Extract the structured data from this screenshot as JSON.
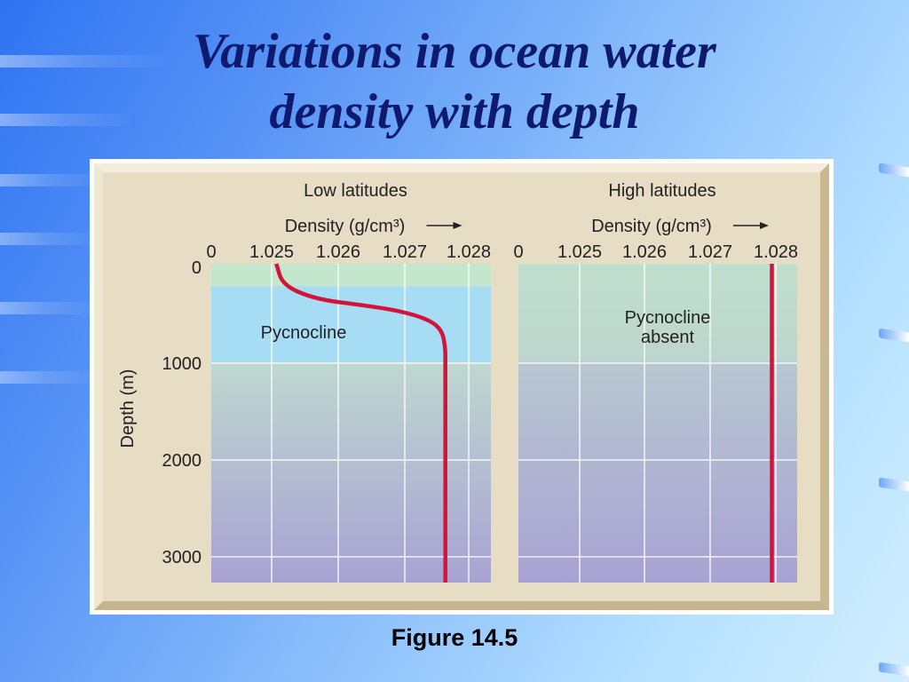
{
  "slide": {
    "title_line1": "Variations in ocean water",
    "title_line2": "density with depth",
    "caption": "Figure 14.5"
  },
  "colors": {
    "title": "#0d1a6e",
    "density_line": "#d4123a",
    "frame_tan": "#e7dcc4",
    "surface_band": "#c4e6cc",
    "pycnocline_band": "#a6dcf4",
    "deep_top": "#bfd8d0",
    "deep_bottom": "#a8a2d2"
  },
  "chart_data": [
    {
      "type": "line",
      "title": "Low latitudes",
      "xlabel": "Density (g/cm³)",
      "ylabel": "Depth (m)",
      "x_tick_labels": [
        "0",
        "1.025",
        "1.026",
        "1.027",
        "1.028"
      ],
      "y_tick_labels": [
        "0",
        "1000",
        "2000",
        "3000"
      ],
      "xlim": [
        1.024,
        1.0283
      ],
      "ylim": [
        0,
        3250
      ],
      "y_inverted": true,
      "grid": true,
      "annotations": [
        "Pycnocline"
      ],
      "bands": [
        {
          "name": "surface",
          "from": 0,
          "to": 230
        },
        {
          "name": "pycnocline",
          "from": 230,
          "to": 1000
        },
        {
          "name": "deep",
          "from": 1000,
          "to": 3250
        }
      ],
      "series": [
        {
          "x": [
            1.025,
            1.0251,
            1.0256,
            1.0263,
            1.0269,
            1.02735,
            1.02755,
            1.0276,
            1.0276,
            1.0276
          ],
          "y": [
            0,
            220,
            360,
            420,
            480,
            570,
            680,
            860,
            1000,
            3250
          ]
        }
      ]
    },
    {
      "type": "line",
      "title": "High latitudes",
      "xlabel": "Density (g/cm³)",
      "x_tick_labels": [
        "0",
        "1.025",
        "1.026",
        "1.027",
        "1.028"
      ],
      "xlim": [
        1.024,
        1.0284
      ],
      "ylim": [
        0,
        3250
      ],
      "y_inverted": true,
      "grid": true,
      "annotations": [
        "Pycnocline absent"
      ],
      "series": [
        {
          "x": [
            1.028,
            1.028
          ],
          "y": [
            0,
            3250
          ]
        }
      ]
    }
  ]
}
